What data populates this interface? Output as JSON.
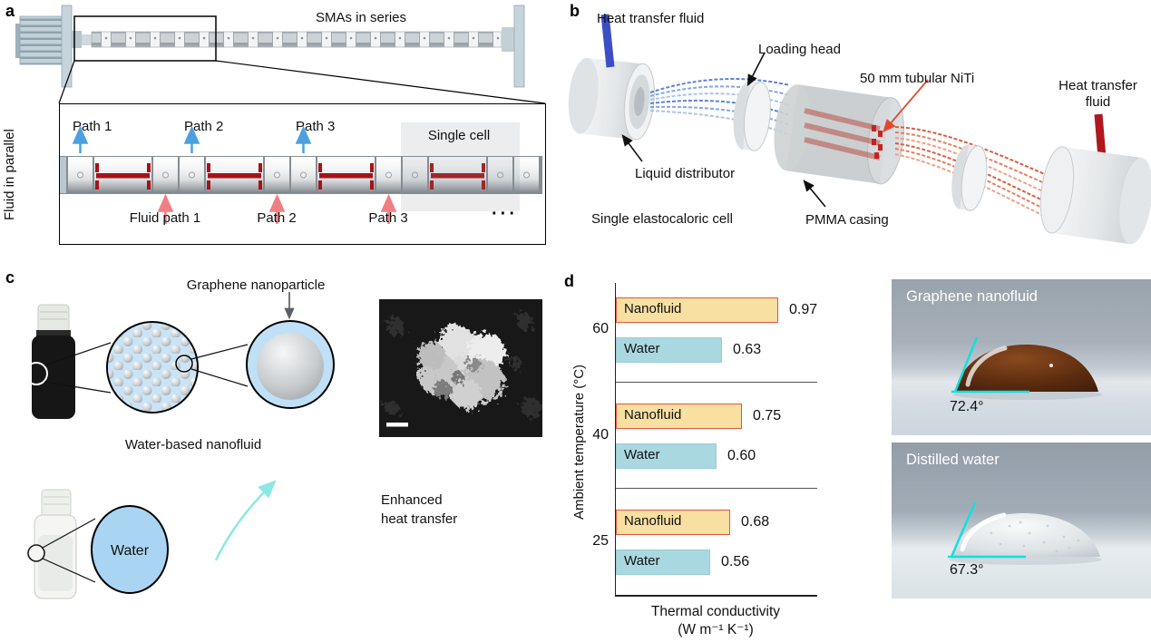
{
  "figure": {
    "panel_a": {
      "letter": "a",
      "smas_in_series": "SMAs in series",
      "fluid_in_parallel": "Fluid in parallel",
      "path1_top": "Path 1",
      "path2_top": "Path 2",
      "path3_top": "Path 3",
      "fluid_path1": "Fluid path 1",
      "path2_bottom": "Path 2",
      "path3_bottom": "Path 3",
      "single_cell": "Single cell",
      "ellipsis": "···"
    },
    "panel_b": {
      "letter": "b",
      "heat_transfer_fluid_in": "Heat transfer fluid",
      "loading_head": "Loading head",
      "tubular_niti": "50 mm tubular NiTi",
      "heat_transfer_fluid_out_l1": "Heat transfer",
      "heat_transfer_fluid_out_l2": "fluid",
      "liquid_distributor": "Liquid distributor",
      "single_elastocaloric_cell": "Single elastocaloric cell",
      "pmma_casing": "PMMA casing"
    },
    "panel_c": {
      "letter": "c",
      "graphene_nanoparticle": "Graphene nanoparticle",
      "water_based_nanofluid": "Water-based nanofluid",
      "water": "Water",
      "enhanced_l1": "Enhanced",
      "enhanced_l2": "heat transfer"
    },
    "panel_d": {
      "letter": "d",
      "photos": [
        {
          "title": "Graphene nanofluid",
          "angle": "72.4°"
        },
        {
          "title": "Distilled water",
          "angle": "67.3°"
        }
      ]
    }
  },
  "chart_data": {
    "type": "bar",
    "orientation": "horizontal",
    "title": "",
    "ylabel": "Ambient temperature (°C)",
    "xlabel_line1": "Thermal conductivity",
    "xlabel_line2": "(W m⁻¹ K⁻¹)",
    "categories": [
      "60",
      "40",
      "25"
    ],
    "series": [
      {
        "name": "Nanofluid",
        "values": [
          0.97,
          0.75,
          0.68
        ],
        "fill": "#f8dfa2",
        "border": "#e0563a"
      },
      {
        "name": "Water",
        "values": [
          0.63,
          0.6,
          0.56
        ],
        "fill": "#aad8e1",
        "border": "#98cdd8"
      }
    ],
    "xlim": [
      0,
      1.2
    ],
    "grid": false,
    "legend": "series names printed inside bars",
    "value_label_decimals": 2
  },
  "colors": {
    "path_arrow_blue": "#4da0de",
    "path_arrow_pink": "#f17e82",
    "niti_red": "#a61216",
    "contact_angle_cyan": "#12dfe0",
    "htf_in_blue": "#3b4ec5",
    "htf_out_red": "#b0181f",
    "enhanced_arrow_cyan": "#8ce8e4",
    "nanofluid_circle_blue": "#c9e4f8"
  }
}
